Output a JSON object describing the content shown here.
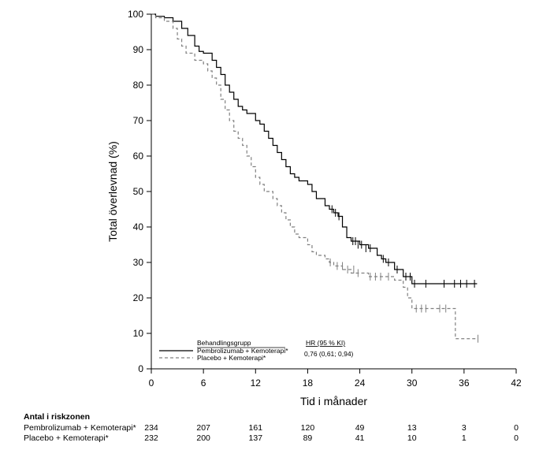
{
  "chart_data": {
    "type": "line",
    "subtype": "kaplan-meier",
    "title": "",
    "xlabel": "Tid i månader",
    "ylabel": "Total överlevnad (%)",
    "xlim": [
      0,
      42
    ],
    "ylim": [
      0,
      100
    ],
    "xticks": [
      0,
      6,
      12,
      18,
      24,
      30,
      36,
      42
    ],
    "yticks": [
      0,
      10,
      20,
      30,
      40,
      50,
      60,
      70,
      80,
      90,
      100
    ],
    "legend": {
      "title": "Behandlingsgrupp",
      "hr_header": "HR (95 % KI)",
      "entries": [
        {
          "label": "Pembrolizumab + Kemoterapi*",
          "hr": "0,76 (0,61; 0,94)"
        },
        {
          "label": "Placebo + Kemoterapi*",
          "hr": ""
        }
      ]
    },
    "series": [
      {
        "name": "Pembrolizumab + Kemoterapi*",
        "style": "solid",
        "color": "#000000",
        "steps": [
          [
            0,
            100
          ],
          [
            0.5,
            99.4
          ],
          [
            1.5,
            99
          ],
          [
            2.5,
            98
          ],
          [
            3.5,
            96
          ],
          [
            4.2,
            94
          ],
          [
            5,
            91
          ],
          [
            5.5,
            89.5
          ],
          [
            6,
            89
          ],
          [
            7,
            87
          ],
          [
            7.5,
            85
          ],
          [
            8,
            83
          ],
          [
            8.5,
            80
          ],
          [
            9,
            78
          ],
          [
            9.5,
            76
          ],
          [
            10,
            74
          ],
          [
            10.5,
            73
          ],
          [
            11,
            72
          ],
          [
            12,
            70
          ],
          [
            12.5,
            69
          ],
          [
            13,
            67
          ],
          [
            13.5,
            65
          ],
          [
            14,
            63
          ],
          [
            14.5,
            61
          ],
          [
            15,
            59
          ],
          [
            15.5,
            57
          ],
          [
            16,
            55
          ],
          [
            16.5,
            54
          ],
          [
            17,
            53
          ],
          [
            18,
            52
          ],
          [
            18.5,
            50
          ],
          [
            19,
            48
          ],
          [
            20,
            46
          ],
          [
            20.5,
            45
          ],
          [
            21,
            44
          ],
          [
            21.5,
            43
          ],
          [
            22,
            40
          ],
          [
            22.5,
            37
          ],
          [
            23,
            36
          ],
          [
            24,
            35
          ],
          [
            25,
            34
          ],
          [
            26,
            32
          ],
          [
            26.5,
            31
          ],
          [
            27,
            30
          ],
          [
            28,
            28
          ],
          [
            29,
            26
          ],
          [
            30,
            24
          ],
          [
            37.5,
            24
          ]
        ],
        "censored": [
          [
            20.8,
            45
          ],
          [
            21.2,
            44
          ],
          [
            21.6,
            43
          ],
          [
            22,
            42
          ],
          [
            23.2,
            36
          ],
          [
            23.5,
            36
          ],
          [
            23.8,
            35
          ],
          [
            24.2,
            35
          ],
          [
            24.7,
            34
          ],
          [
            25.2,
            34
          ],
          [
            26.7,
            31
          ],
          [
            27.3,
            30
          ],
          [
            28.3,
            28
          ],
          [
            29.3,
            26
          ],
          [
            29.8,
            26
          ],
          [
            30.3,
            24
          ],
          [
            31.6,
            24
          ],
          [
            33.7,
            24
          ],
          [
            34.9,
            24
          ],
          [
            35.6,
            24
          ],
          [
            36.3,
            24
          ],
          [
            37.2,
            24
          ]
        ]
      },
      {
        "name": "Placebo + Kemoterapi*",
        "style": "dashed",
        "color": "#808080",
        "steps": [
          [
            0,
            100
          ],
          [
            0.5,
            99
          ],
          [
            1.5,
            98
          ],
          [
            2.5,
            96
          ],
          [
            3,
            93
          ],
          [
            3.5,
            91
          ],
          [
            4,
            89
          ],
          [
            5,
            87
          ],
          [
            6,
            86
          ],
          [
            6.5,
            84
          ],
          [
            7,
            82
          ],
          [
            7.5,
            80
          ],
          [
            8,
            76
          ],
          [
            8.5,
            73
          ],
          [
            9,
            70
          ],
          [
            9.5,
            67
          ],
          [
            10,
            65
          ],
          [
            10.5,
            63
          ],
          [
            11,
            60
          ],
          [
            11.5,
            57
          ],
          [
            12,
            54
          ],
          [
            12.5,
            52
          ],
          [
            13,
            50
          ],
          [
            14,
            48
          ],
          [
            14.5,
            46
          ],
          [
            15,
            44
          ],
          [
            15.5,
            42
          ],
          [
            16,
            40
          ],
          [
            16.5,
            38
          ],
          [
            17,
            37
          ],
          [
            18,
            35
          ],
          [
            18.5,
            33
          ],
          [
            19,
            32
          ],
          [
            20,
            31
          ],
          [
            20.5,
            30
          ],
          [
            21,
            29
          ],
          [
            22,
            28
          ],
          [
            23,
            27
          ],
          [
            24,
            27
          ],
          [
            25,
            26
          ],
          [
            26,
            26
          ],
          [
            27,
            26
          ],
          [
            28,
            25
          ],
          [
            29,
            23
          ],
          [
            29.5,
            20
          ],
          [
            30,
            17
          ],
          [
            31,
            17
          ],
          [
            35,
            8.5
          ],
          [
            37.5,
            8.5
          ]
        ],
        "censored": [
          [
            20.6,
            30
          ],
          [
            21.4,
            29
          ],
          [
            22,
            29
          ],
          [
            22.6,
            28
          ],
          [
            23.3,
            28
          ],
          [
            23.8,
            27
          ],
          [
            25.2,
            26
          ],
          [
            25.8,
            26
          ],
          [
            26.4,
            26
          ],
          [
            27.3,
            26
          ],
          [
            30.5,
            17
          ],
          [
            31.1,
            17
          ],
          [
            31.6,
            17
          ],
          [
            33.2,
            17
          ],
          [
            33.9,
            17
          ],
          [
            37.6,
            8.5
          ]
        ]
      }
    ],
    "risk_table": {
      "title": "Antal i riskzonen",
      "times": [
        0,
        6,
        12,
        18,
        24,
        30,
        36,
        42
      ],
      "rows": [
        {
          "label": "Pembrolizumab + Kemoterapi*",
          "counts": [
            234,
            207,
            161,
            120,
            49,
            13,
            3,
            0
          ]
        },
        {
          "label": "Placebo + Kemoterapi*",
          "counts": [
            232,
            200,
            137,
            89,
            41,
            10,
            1,
            0
          ]
        }
      ]
    }
  }
}
